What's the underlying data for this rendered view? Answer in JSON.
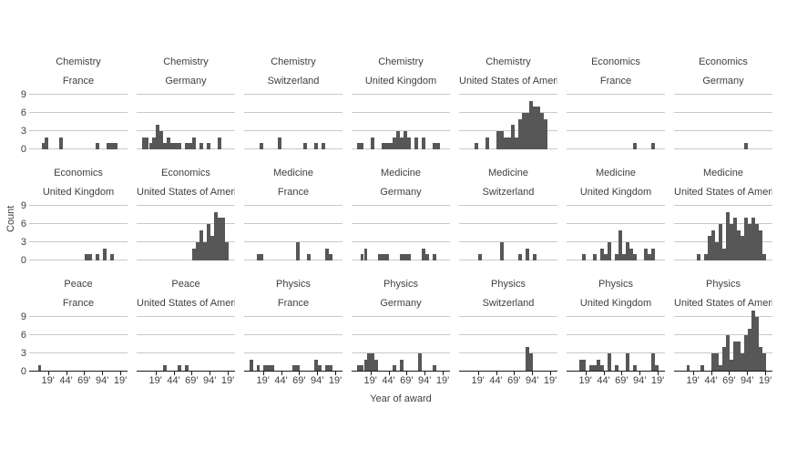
{
  "axis": {
    "x_title": "Year of award",
    "y_title": "Count",
    "x_tick_labels": [
      "19'",
      "44'",
      "69'",
      "94'",
      "19'"
    ],
    "x_tick_years": [
      1919,
      1944,
      1969,
      1994,
      2019
    ],
    "y_tick_labels": [
      "0",
      "3",
      "6",
      "9"
    ],
    "y_tick_values": [
      0,
      3,
      6,
      9
    ]
  },
  "style": {
    "bar_color": "#575757",
    "gridline_color": "#c9c9c9",
    "axis_color": "#1a1a1a",
    "text_color": "#3f3f3f"
  },
  "chart_data": {
    "type": "bar",
    "kind": "faceted-histogram",
    "title": "",
    "xlabel": "Year of award",
    "ylabel": "Count",
    "x_domain": [
      1893,
      2029
    ],
    "bin_width_years": 5,
    "y_ticks": [
      0,
      3,
      6,
      9
    ],
    "y_max_scale": 9.6,
    "facet_rows": 3,
    "facet_cols": 7,
    "panels": [
      {
        "category": "Chemistry",
        "country": "France",
        "bars": [
          [
            1910,
            1
          ],
          [
            1915,
            2
          ],
          [
            1935,
            2
          ],
          [
            1985,
            1
          ],
          [
            2000,
            1
          ],
          [
            2005,
            1
          ],
          [
            2010,
            1
          ]
        ]
      },
      {
        "category": "Chemistry",
        "country": "Germany",
        "bars": [
          [
            1900,
            2
          ],
          [
            1905,
            2
          ],
          [
            1910,
            1
          ],
          [
            1915,
            2
          ],
          [
            1920,
            4
          ],
          [
            1925,
            3
          ],
          [
            1930,
            1
          ],
          [
            1935,
            2
          ],
          [
            1940,
            1
          ],
          [
            1945,
            1
          ],
          [
            1950,
            1
          ],
          [
            1960,
            1
          ],
          [
            1965,
            1
          ],
          [
            1970,
            2
          ],
          [
            1980,
            1
          ],
          [
            1990,
            1
          ],
          [
            2005,
            2
          ]
        ]
      },
      {
        "category": "Chemistry",
        "country": "Switzerland",
        "bars": [
          [
            1915,
            1
          ],
          [
            1940,
            2
          ],
          [
            1975,
            1
          ],
          [
            1990,
            1
          ],
          [
            2000,
            1
          ]
        ]
      },
      {
        "category": "Chemistry",
        "country": "United Kingdom",
        "bars": [
          [
            1900,
            1
          ],
          [
            1905,
            1
          ],
          [
            1920,
            2
          ],
          [
            1935,
            1
          ],
          [
            1940,
            1
          ],
          [
            1945,
            1
          ],
          [
            1950,
            2
          ],
          [
            1955,
            3
          ],
          [
            1960,
            2
          ],
          [
            1965,
            3
          ],
          [
            1970,
            2
          ],
          [
            1980,
            2
          ],
          [
            1990,
            2
          ],
          [
            2005,
            1
          ],
          [
            2010,
            1
          ]
        ]
      },
      {
        "category": "Chemistry",
        "country": "United States of America",
        "bars": [
          [
            1915,
            1
          ],
          [
            1930,
            2
          ],
          [
            1945,
            3
          ],
          [
            1950,
            3
          ],
          [
            1955,
            2
          ],
          [
            1960,
            2
          ],
          [
            1965,
            4
          ],
          [
            1970,
            2
          ],
          [
            1975,
            5
          ],
          [
            1980,
            6
          ],
          [
            1985,
            6
          ],
          [
            1990,
            8
          ],
          [
            1995,
            7
          ],
          [
            2000,
            7
          ],
          [
            2005,
            6
          ],
          [
            2010,
            5
          ]
        ]
      },
      {
        "category": "Economics",
        "country": "France",
        "bars": [
          [
            1985,
            1
          ],
          [
            2010,
            1
          ]
        ]
      },
      {
        "category": "Economics",
        "country": "Germany",
        "bars": [
          [
            1990,
            1
          ]
        ]
      },
      {
        "category": "Economics",
        "country": "United Kingdom",
        "bars": [
          [
            1970,
            1
          ],
          [
            1975,
            1
          ],
          [
            1985,
            1
          ],
          [
            1995,
            2
          ],
          [
            2005,
            1
          ]
        ]
      },
      {
        "category": "Economics",
        "country": "United States of America",
        "bars": [
          [
            1970,
            2
          ],
          [
            1975,
            3
          ],
          [
            1980,
            5
          ],
          [
            1985,
            3
          ],
          [
            1990,
            6
          ],
          [
            1995,
            4
          ],
          [
            2000,
            8
          ],
          [
            2005,
            7
          ],
          [
            2010,
            7
          ],
          [
            2015,
            3
          ]
        ]
      },
      {
        "category": "Medicine",
        "country": "France",
        "bars": [
          [
            1910,
            1
          ],
          [
            1915,
            1
          ],
          [
            1965,
            3
          ],
          [
            1980,
            1
          ],
          [
            2005,
            2
          ],
          [
            2010,
            1
          ]
        ]
      },
      {
        "category": "Medicine",
        "country": "Germany",
        "bars": [
          [
            1905,
            1
          ],
          [
            1910,
            2
          ],
          [
            1930,
            1
          ],
          [
            1935,
            1
          ],
          [
            1940,
            1
          ],
          [
            1960,
            1
          ],
          [
            1965,
            1
          ],
          [
            1970,
            1
          ],
          [
            1990,
            2
          ],
          [
            1995,
            1
          ],
          [
            2005,
            1
          ]
        ]
      },
      {
        "category": "Medicine",
        "country": "Switzerland",
        "bars": [
          [
            1920,
            1
          ],
          [
            1950,
            3
          ],
          [
            1975,
            1
          ],
          [
            1985,
            2
          ],
          [
            1995,
            1
          ]
        ]
      },
      {
        "category": "Medicine",
        "country": "United Kingdom",
        "bars": [
          [
            1915,
            1
          ],
          [
            1930,
            1
          ],
          [
            1940,
            2
          ],
          [
            1945,
            1
          ],
          [
            1950,
            3
          ],
          [
            1960,
            1
          ],
          [
            1965,
            5
          ],
          [
            1970,
            1
          ],
          [
            1975,
            3
          ],
          [
            1980,
            2
          ],
          [
            1985,
            1
          ],
          [
            2000,
            2
          ],
          [
            2005,
            1
          ],
          [
            2010,
            2
          ]
        ]
      },
      {
        "category": "Medicine",
        "country": "United States of America",
        "bars": [
          [
            1925,
            1
          ],
          [
            1935,
            1
          ],
          [
            1940,
            4
          ],
          [
            1945,
            5
          ],
          [
            1950,
            3
          ],
          [
            1955,
            6
          ],
          [
            1960,
            2
          ],
          [
            1965,
            8
          ],
          [
            1970,
            6
          ],
          [
            1975,
            7
          ],
          [
            1980,
            5
          ],
          [
            1985,
            4
          ],
          [
            1990,
            7
          ],
          [
            1995,
            6
          ],
          [
            2000,
            7
          ],
          [
            2005,
            6
          ],
          [
            2010,
            5
          ],
          [
            2015,
            1
          ]
        ]
      },
      {
        "category": "Peace",
        "country": "France",
        "bars": [
          [
            1905,
            1
          ]
        ]
      },
      {
        "category": "Peace",
        "country": "United States of America",
        "bars": [
          [
            1930,
            1
          ],
          [
            1950,
            1
          ],
          [
            1960,
            1
          ]
        ]
      },
      {
        "category": "Physics",
        "country": "France",
        "bars": [
          [
            1900,
            2
          ],
          [
            1910,
            1
          ],
          [
            1920,
            1
          ],
          [
            1925,
            1
          ],
          [
            1930,
            1
          ],
          [
            1960,
            1
          ],
          [
            1965,
            1
          ],
          [
            1990,
            2
          ],
          [
            1995,
            1
          ],
          [
            2005,
            1
          ],
          [
            2010,
            1
          ]
        ]
      },
      {
        "category": "Physics",
        "country": "Germany",
        "bars": [
          [
            1900,
            1
          ],
          [
            1905,
            1
          ],
          [
            1910,
            2
          ],
          [
            1915,
            3
          ],
          [
            1920,
            3
          ],
          [
            1925,
            2
          ],
          [
            1950,
            1
          ],
          [
            1960,
            2
          ],
          [
            1985,
            3
          ],
          [
            2005,
            1
          ]
        ]
      },
      {
        "category": "Physics",
        "country": "Switzerland",
        "bars": [
          [
            1985,
            4
          ],
          [
            1990,
            3
          ]
        ]
      },
      {
        "category": "Physics",
        "country": "United Kingdom",
        "bars": [
          [
            1910,
            2
          ],
          [
            1915,
            2
          ],
          [
            1925,
            1
          ],
          [
            1930,
            1
          ],
          [
            1935,
            2
          ],
          [
            1940,
            1
          ],
          [
            1950,
            3
          ],
          [
            1960,
            1
          ],
          [
            1975,
            3
          ],
          [
            1985,
            1
          ],
          [
            2010,
            3
          ],
          [
            2015,
            1
          ]
        ]
      },
      {
        "category": "Physics",
        "country": "United States of America",
        "bars": [
          [
            1910,
            1
          ],
          [
            1930,
            1
          ],
          [
            1945,
            3
          ],
          [
            1950,
            3
          ],
          [
            1955,
            1
          ],
          [
            1960,
            4
          ],
          [
            1965,
            6
          ],
          [
            1970,
            2
          ],
          [
            1975,
            5
          ],
          [
            1980,
            5
          ],
          [
            1985,
            3
          ],
          [
            1990,
            6
          ],
          [
            1995,
            7
          ],
          [
            2000,
            10
          ],
          [
            2005,
            9
          ],
          [
            2010,
            4
          ],
          [
            2015,
            3
          ]
        ]
      }
    ]
  }
}
